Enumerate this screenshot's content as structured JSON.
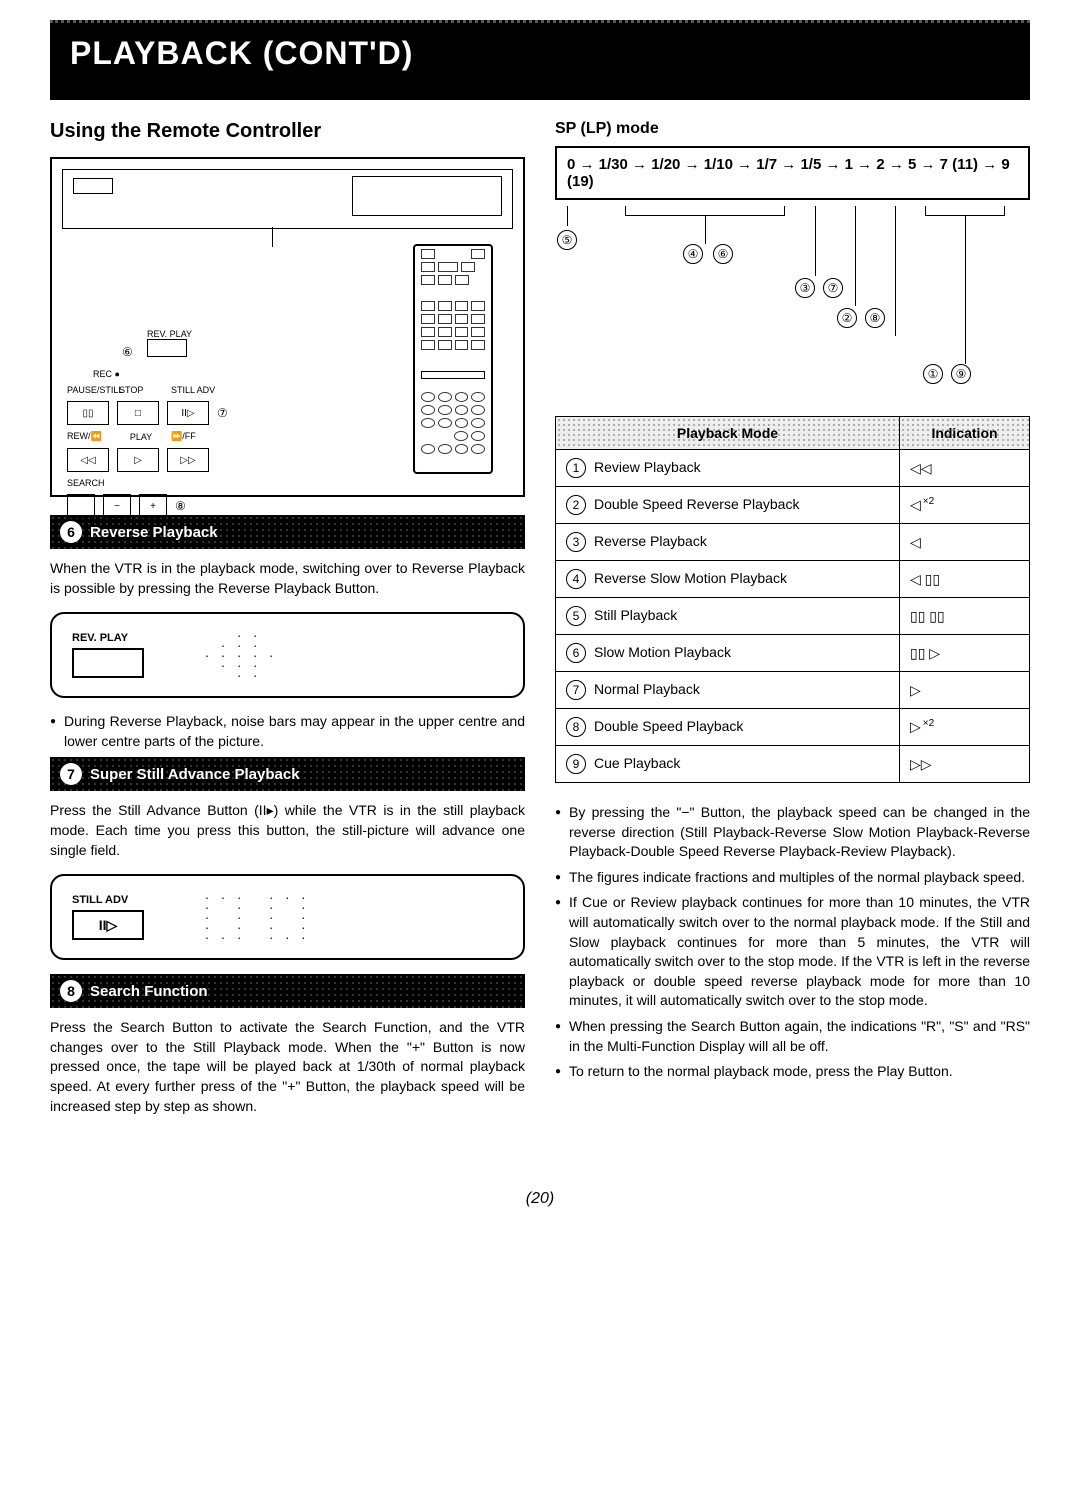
{
  "header": {
    "title": "PLAYBACK (CONT'D)"
  },
  "left": {
    "subtitle": "Using the Remote Controller",
    "diagram": {
      "rev_play_label": "REV. PLAY",
      "rec_label": "REC ●",
      "pause_label": "PAUSE/STILL",
      "stop_label": "STOP",
      "still_adv_label": "STILL ADV",
      "rew_label": "REW/⏪",
      "play_label": "PLAY",
      "ff_label": "⏩/FF",
      "search_label": "SEARCH",
      "callouts": {
        "c6": "⑥",
        "c7": "⑦",
        "c8": "⑧"
      }
    },
    "section6": {
      "num": "6",
      "title": "Reverse Playback",
      "para": "When the VTR is in the playback mode, switching over to Reverse Playback is possible by pressing the Reverse Playback Button.",
      "btn_label": "REV. PLAY",
      "note": "During Reverse Playback, noise bars may appear in the upper centre and lower centre parts of the picture."
    },
    "section7": {
      "num": "7",
      "title": "Super Still Advance Playback",
      "para": "Press the Still Advance Button (II▸) while the VTR is in the still playback mode. Each time you press this button, the still-picture will advance one single field.",
      "btn_label": "STILL ADV",
      "btn_symbol": "II▷"
    },
    "section8": {
      "num": "8",
      "title": "Search Function",
      "para": "Press the Search Button to activate the Search Function, and the VTR changes over to the Still Playback mode. When the \"+\" Button is now pressed once, the tape will be played back at 1/30th of normal playback speed. At every further press of the \"+\" Button, the playback speed will be increased step by step as shown."
    }
  },
  "right": {
    "subtitle": "SP (LP) mode",
    "speed_chain": "0 → 1/30 → 1/20 → 1/10 → 1/7 → 1/5 → 1  → 2 → 5  → 7 (11) → 9 (19)",
    "refs": [
      "⑤",
      "④",
      "⑥",
      "③",
      "⑦",
      "②",
      "⑧",
      "①",
      "⑨"
    ],
    "table": {
      "head_mode": "Playback Mode",
      "head_ind": "Indication",
      "rows": [
        {
          "n": "1",
          "label": "Review Playback",
          "ind": "◁◁"
        },
        {
          "n": "2",
          "label": "Double Speed Reverse Playback",
          "ind": "◁",
          "sup": "×2"
        },
        {
          "n": "3",
          "label": "Reverse Playback",
          "ind": "◁"
        },
        {
          "n": "4",
          "label": "Reverse Slow Motion Playback",
          "ind": "◁ ▯▯"
        },
        {
          "n": "5",
          "label": "Still Playback",
          "ind": "▯▯ ▯▯"
        },
        {
          "n": "6",
          "label": "Slow Motion Playback",
          "ind": "▯▯ ▷"
        },
        {
          "n": "7",
          "label": "Normal Playback",
          "ind": "▷"
        },
        {
          "n": "8",
          "label": "Double Speed Playback",
          "ind": "▷",
          "sup": "×2"
        },
        {
          "n": "9",
          "label": "Cue Playback",
          "ind": "▷▷"
        }
      ]
    },
    "notes": [
      "By pressing the \"−\" Button, the playback speed can be changed in the reverse direction (Still Playback-Reverse Slow Motion Playback-Reverse Playback-Double Speed Reverse Playback-Review Playback).",
      "The figures indicate fractions and multiples of the normal playback speed.",
      "If Cue or Review playback continues for more than 10 minutes, the VTR will automatically switch over to the normal playback mode. If the Still and Slow playback continues for more than 5 minutes, the VTR will automatically switch over to the stop mode. If the VTR is left in the reverse playback or double speed reverse playback mode for more than 10 minutes, it will automatically switch over to the stop mode.",
      "When pressing the Search Button again, the indications \"R\", \"S\" and \"RS\" in the Multi-Function Display will all be off.",
      "To return to the normal playback mode, press the Play Button."
    ]
  },
  "page_number": "(20)"
}
